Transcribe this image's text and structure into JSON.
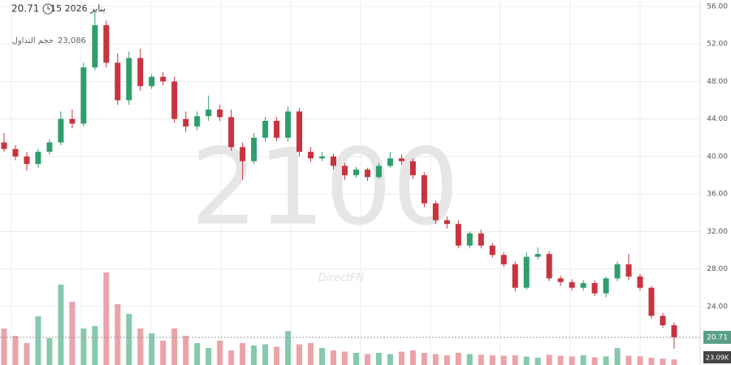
{
  "chart_data": {
    "type": "candlestick",
    "price_label": "20.71",
    "date_label": "15 2026 يناير",
    "volume_title": "حجم التداول",
    "volume_value": "23,086",
    "watermark": "2100",
    "brand": "DirectFN",
    "last_close_label": "20.71",
    "last_volume_label": "23.09K",
    "up_color": "#2e9e6b",
    "down_color": "#c8333e",
    "volume_up_color": "#86c9ad",
    "volume_down_color": "#eba3a9",
    "grid": true,
    "ylim": [
      17.76,
      56.69
    ],
    "yticks": [
      {
        "value": 24,
        "label": "24.00"
      },
      {
        "value": 28,
        "label": "28.00"
      },
      {
        "value": 32,
        "label": "32.00"
      },
      {
        "value": 36,
        "label": "36.00"
      },
      {
        "value": 40,
        "label": "40.00"
      },
      {
        "value": 44,
        "label": "44.00"
      },
      {
        "value": 48,
        "label": "48.00"
      },
      {
        "value": 52,
        "label": "52.00"
      },
      {
        "value": 56,
        "label": "56.00"
      }
    ],
    "y2lim": [
      0,
      500000
    ],
    "open": [
      41.5,
      40.8,
      40.0,
      39.2,
      40.5,
      41.5,
      44.0,
      43.5,
      49.5,
      54.0,
      50.0,
      46.0,
      50.5,
      47.5,
      48.5,
      48.0,
      44.0,
      43.2,
      44.3,
      45.0,
      44.2,
      41.0,
      39.5,
      42.0,
      43.8,
      42.0,
      44.8,
      40.5,
      39.8,
      40.0,
      39.0,
      38.0,
      38.6,
      37.8,
      39.0,
      39.8,
      39.5,
      38.0,
      35.0,
      33.2,
      32.8,
      30.5,
      31.8,
      30.5,
      29.5,
      28.5,
      26.0,
      29.3,
      29.6,
      27.0,
      26.6,
      26.0,
      26.5,
      25.4,
      27.0,
      28.5,
      27.2,
      26.0,
      23.0,
      22.0
    ],
    "high": [
      42.5,
      41.2,
      40.5,
      40.8,
      41.8,
      44.8,
      45.0,
      50.0,
      55.5,
      54.5,
      51.0,
      51.2,
      51.5,
      48.8,
      49.0,
      48.5,
      44.8,
      44.8,
      46.5,
      45.5,
      45.0,
      41.5,
      42.5,
      44.2,
      44.2,
      45.3,
      45.2,
      41.0,
      40.5,
      40.3,
      39.3,
      38.9,
      38.8,
      39.3,
      40.5,
      40.2,
      39.8,
      38.3,
      35.3,
      33.6,
      33.2,
      32.0,
      32.2,
      30.8,
      29.8,
      28.8,
      29.8,
      30.3,
      29.9,
      27.3,
      26.9,
      26.8,
      26.8,
      27.2,
      28.8,
      29.6,
      27.5,
      26.2,
      23.3,
      22.3
    ],
    "low": [
      40.5,
      39.6,
      38.5,
      38.8,
      40.2,
      41.2,
      43.0,
      43.2,
      49.2,
      49.5,
      45.5,
      45.5,
      47.0,
      47.2,
      47.6,
      43.6,
      42.6,
      42.8,
      43.8,
      43.8,
      40.6,
      37.5,
      39.2,
      41.6,
      41.6,
      41.6,
      40.0,
      39.4,
      39.5,
      38.6,
      37.5,
      37.7,
      37.4,
      37.6,
      38.8,
      39.1,
      37.6,
      34.6,
      32.8,
      32.3,
      30.2,
      30.2,
      30.2,
      29.2,
      28.2,
      25.6,
      25.8,
      29.0,
      26.7,
      26.2,
      25.7,
      25.7,
      25.1,
      25.0,
      26.7,
      26.8,
      25.7,
      22.7,
      21.7,
      19.5
    ],
    "close": [
      40.8,
      40.0,
      39.2,
      40.5,
      41.5,
      44.0,
      43.5,
      49.5,
      54.0,
      50.0,
      46.0,
      50.5,
      47.5,
      48.5,
      48.0,
      44.0,
      43.2,
      44.3,
      45.0,
      44.2,
      41.0,
      39.5,
      42.0,
      43.8,
      42.0,
      44.8,
      40.5,
      39.8,
      40.0,
      39.0,
      38.0,
      38.6,
      37.8,
      39.0,
      39.8,
      39.5,
      38.0,
      35.0,
      33.2,
      32.8,
      30.5,
      31.8,
      30.5,
      29.5,
      28.5,
      26.0,
      29.3,
      29.6,
      27.0,
      26.6,
      26.0,
      26.5,
      25.4,
      27.0,
      28.5,
      27.2,
      26.0,
      23.0,
      22.0,
      20.71
    ],
    "volume": [
      150000,
      120000,
      90000,
      200000,
      110000,
      330000,
      260000,
      150000,
      160000,
      380000,
      250000,
      210000,
      150000,
      130000,
      100000,
      150000,
      120000,
      90000,
      70000,
      100000,
      60000,
      90000,
      80000,
      85000,
      75000,
      140000,
      85000,
      90000,
      70000,
      60000,
      55000,
      50000,
      45000,
      50000,
      45000,
      55000,
      60000,
      50000,
      45000,
      40000,
      50000,
      45000,
      42000,
      40000,
      38000,
      40000,
      35000,
      30000,
      42000,
      38000,
      35000,
      40000,
      32000,
      35000,
      70000,
      38000,
      36000,
      30000,
      26000,
      23090
    ]
  }
}
